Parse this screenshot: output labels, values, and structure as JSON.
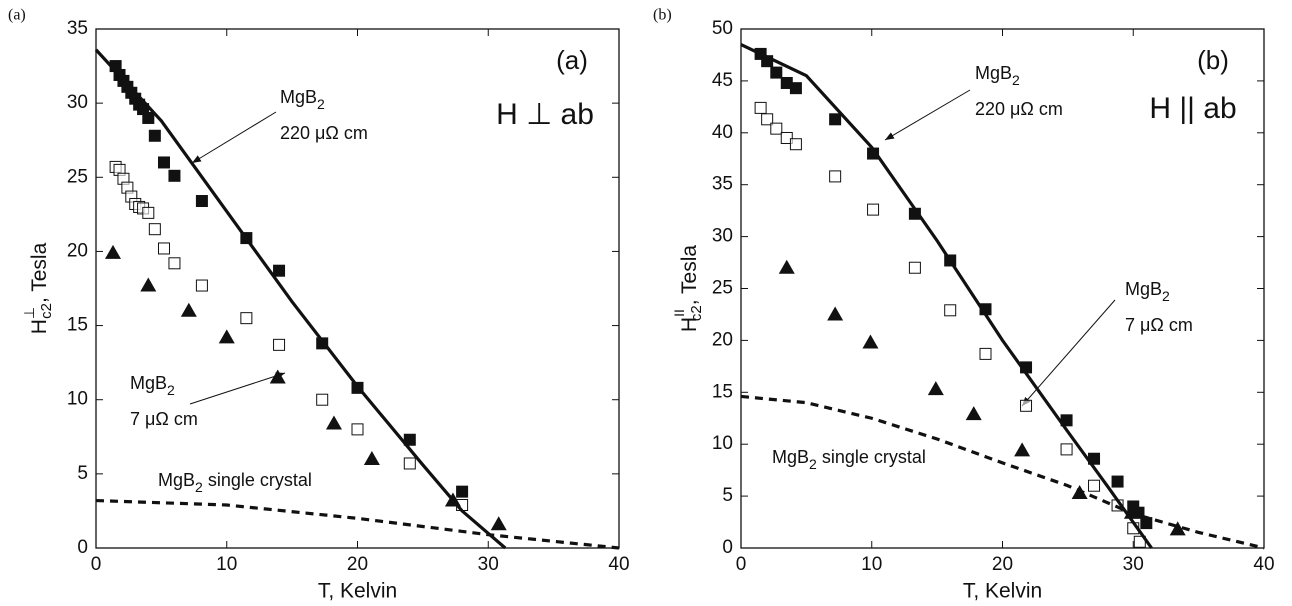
{
  "chart_data": [
    {
      "type": "scatter",
      "panel_label": "(a)",
      "inset_label": "(a)",
      "field_label": "H ⊥ ab",
      "xlabel": "T, Kelvin",
      "ylabel": {
        "main": "H",
        "sup": "⊥",
        "sub": "c2",
        "rest": ", Tesla"
      },
      "xlim": [
        0,
        40
      ],
      "ylim": [
        0,
        35
      ],
      "xticks": [
        0,
        10,
        20,
        30,
        40
      ],
      "yticks": [
        0,
        5,
        10,
        15,
        20,
        25,
        30,
        35
      ],
      "annotations": [
        {
          "main": "MgB",
          "sub": "2",
          "line2": "220 μΩ cm"
        },
        {
          "main": "MgB",
          "sub": "2",
          "line2": "7 μΩ cm"
        },
        {
          "main": "MgB",
          "sub": "2",
          "line2": " single crystal"
        }
      ],
      "series": [
        {
          "marker": "filled-square",
          "color": "#111111",
          "x": [
            1.5,
            1.8,
            2.1,
            2.4,
            2.7,
            3.0,
            3.3,
            3.6,
            4.0,
            4.5,
            5.2,
            6.0,
            8.1,
            11.5,
            14.0,
            17.3,
            20.0,
            24.0,
            28.0
          ],
          "values": [
            32.5,
            31.9,
            31.5,
            31.1,
            30.7,
            30.3,
            29.9,
            29.6,
            29.0,
            27.8,
            26.0,
            25.1,
            23.4,
            20.9,
            18.7,
            13.8,
            10.8,
            7.3,
            3.8
          ]
        },
        {
          "marker": "open-square",
          "color": "#111111",
          "x": [
            1.5,
            1.8,
            2.1,
            2.4,
            2.7,
            3.0,
            3.3,
            3.6,
            4.0,
            4.5,
            5.2,
            6.0,
            8.1,
            11.5,
            14.0,
            17.3,
            20.0,
            24.0,
            28.0
          ],
          "values": [
            25.7,
            25.5,
            24.9,
            24.3,
            23.7,
            23.2,
            23.0,
            22.9,
            22.6,
            21.5,
            20.2,
            19.2,
            17.7,
            15.5,
            13.7,
            10.0,
            8.0,
            5.7,
            2.9
          ]
        },
        {
          "marker": "filled-triangle",
          "color": "#111111",
          "x": [
            1.3,
            4.0,
            7.1,
            10.0,
            13.9,
            18.2,
            21.1,
            27.3,
            30.8
          ],
          "values": [
            19.9,
            17.7,
            16.0,
            14.2,
            11.5,
            8.4,
            6.0,
            3.2,
            1.6
          ]
        },
        {
          "marker": "solid-line",
          "color": "#111111",
          "x": [
            0,
            5,
            10,
            15,
            20,
            25,
            28,
            31.3
          ],
          "values": [
            33.6,
            28.8,
            22.7,
            16.6,
            10.9,
            5.6,
            2.5,
            0
          ]
        },
        {
          "marker": "dashed-line",
          "color": "#111111",
          "x": [
            0,
            10,
            20,
            30,
            40
          ],
          "values": [
            3.2,
            2.9,
            2.0,
            0.9,
            0
          ]
        }
      ]
    },
    {
      "type": "scatter",
      "panel_label": "(b)",
      "inset_label": "(b)",
      "field_label": "H || ab",
      "xlabel": "T, Kelvin",
      "ylabel": {
        "main": "H",
        "sup": "II",
        "sub": "c2",
        "rest": ", Tesla"
      },
      "xlim": [
        0,
        40
      ],
      "ylim": [
        0,
        50
      ],
      "xticks": [
        0,
        10,
        20,
        30,
        40
      ],
      "yticks": [
        0,
        5,
        10,
        15,
        20,
        25,
        30,
        35,
        40,
        45,
        50
      ],
      "annotations": [
        {
          "main": "MgB",
          "sub": "2",
          "line2": "220 μΩ cm"
        },
        {
          "main": "MgB",
          "sub": "2",
          "line2": "7 μΩ cm"
        },
        {
          "main": "MgB",
          "sub": "2",
          "line2": " single crystal"
        }
      ],
      "series": [
        {
          "marker": "filled-square",
          "color": "#111111",
          "x": [
            1.5,
            2.0,
            2.7,
            3.5,
            4.2,
            7.2,
            10.1,
            13.3,
            16.0,
            18.7,
            21.8,
            24.9,
            27.0,
            28.8,
            30.0,
            30.4,
            31.0
          ],
          "values": [
            47.6,
            46.9,
            45.8,
            44.8,
            44.3,
            41.3,
            38.0,
            32.2,
            27.7,
            23.0,
            17.4,
            12.3,
            8.6,
            6.4,
            4.0,
            3.4,
            2.4
          ]
        },
        {
          "marker": "open-square",
          "color": "#111111",
          "x": [
            1.5,
            2.0,
            2.7,
            3.5,
            4.2,
            7.2,
            10.1,
            13.3,
            16.0,
            18.7,
            21.8,
            24.9,
            27.0,
            28.8,
            30.0,
            30.5
          ],
          "values": [
            42.4,
            41.3,
            40.4,
            39.5,
            38.9,
            35.8,
            32.6,
            27.0,
            22.9,
            18.7,
            13.7,
            9.5,
            6.0,
            4.1,
            1.9,
            0.6
          ]
        },
        {
          "marker": "filled-triangle",
          "color": "#111111",
          "x": [
            3.5,
            7.2,
            9.9,
            14.9,
            17.8,
            21.5,
            25.9,
            29.9,
            33.4
          ],
          "values": [
            27.0,
            22.5,
            19.8,
            15.3,
            12.9,
            9.4,
            5.3,
            3.4,
            1.8
          ]
        },
        {
          "marker": "solid-line",
          "color": "#111111",
          "x": [
            0,
            5,
            10,
            15,
            20,
            25,
            28,
            31.4
          ],
          "values": [
            48.5,
            45.5,
            38.6,
            29.6,
            20.0,
            11.2,
            6.0,
            0
          ]
        },
        {
          "marker": "dashed-line",
          "color": "#111111",
          "x": [
            0,
            5,
            10,
            15,
            20,
            25,
            30,
            35,
            40
          ],
          "values": [
            14.6,
            14.0,
            12.5,
            10.5,
            8.2,
            6.0,
            3.3,
            1.5,
            0
          ]
        }
      ]
    }
  ]
}
